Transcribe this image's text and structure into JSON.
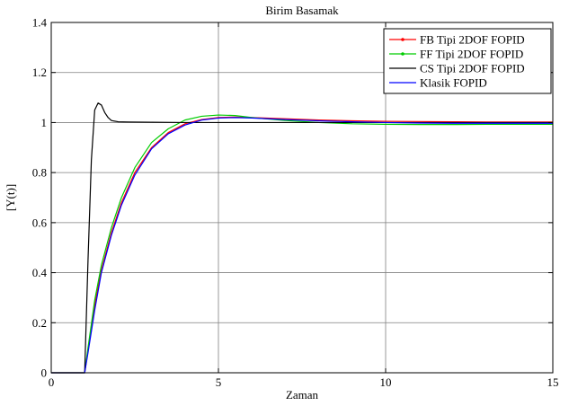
{
  "chart_data": {
    "type": "line",
    "title": "Birim Basamak",
    "xlabel": "Zaman",
    "ylabel": "[Y(t)]",
    "xlim": [
      0,
      15
    ],
    "ylim": [
      0,
      1.4
    ],
    "xticks": [
      0,
      5,
      10,
      15
    ],
    "yticks": [
      0,
      0.2,
      0.4,
      0.6,
      0.8,
      1,
      1.2,
      1.4
    ],
    "xtick_labels": [
      "0",
      "5",
      "10",
      "15"
    ],
    "ytick_labels": [
      "0",
      "0.2",
      "0.4",
      "0.6",
      "0.8",
      "1",
      "1.2",
      "1.4"
    ],
    "grid": true,
    "legend_position": "top-right",
    "series": [
      {
        "name": "FB Tipi 2DOF FOPID",
        "color": "#ff0000",
        "marker": "dot",
        "x": [
          0,
          1.0,
          1.1,
          1.3,
          1.5,
          1.8,
          2.1,
          2.5,
          3.0,
          3.5,
          4.0,
          4.5,
          5.0,
          5.5,
          6.0,
          7.0,
          8.0,
          9.0,
          10.0,
          11.0,
          12.0,
          13.0,
          14.0,
          15.0
        ],
        "y": [
          0,
          0,
          0.09,
          0.27,
          0.41,
          0.56,
          0.68,
          0.8,
          0.9,
          0.96,
          0.995,
          1.012,
          1.02,
          1.022,
          1.02,
          1.015,
          1.01,
          1.007,
          1.005,
          1.004,
          1.003,
          1.002,
          1.002,
          1.002
        ]
      },
      {
        "name": "FF Tipi 2DOF FOPID",
        "color": "#00cc00",
        "marker": "dot",
        "x": [
          0,
          1.0,
          1.1,
          1.3,
          1.5,
          1.8,
          2.1,
          2.5,
          3.0,
          3.5,
          4.0,
          4.5,
          5.0,
          5.5,
          6.0,
          7.0,
          8.0,
          9.0,
          10.0,
          11.0,
          12.0,
          13.0,
          14.0,
          15.0
        ],
        "y": [
          0,
          0,
          0.1,
          0.29,
          0.43,
          0.58,
          0.7,
          0.82,
          0.92,
          0.975,
          1.01,
          1.025,
          1.03,
          1.028,
          1.02,
          1.008,
          1.0,
          0.995,
          0.993,
          0.992,
          0.992,
          0.993,
          0.993,
          0.993
        ]
      },
      {
        "name": "CS Tipi 2DOF FOPID",
        "color": "#000000",
        "x": [
          0,
          1.0,
          1.1,
          1.2,
          1.3,
          1.4,
          1.5,
          1.6,
          1.7,
          1.8,
          2.0,
          2.3,
          3.0,
          4.0,
          5.0,
          7.0,
          10.0,
          15.0
        ],
        "y": [
          0,
          0,
          0.45,
          0.85,
          1.05,
          1.078,
          1.07,
          1.04,
          1.02,
          1.008,
          1.003,
          1.002,
          1.001,
          1.0,
          1.0,
          1.0,
          1.0,
          1.0
        ]
      },
      {
        "name": "Klasik FOPID",
        "color": "#0000ff",
        "x": [
          0,
          1.0,
          1.1,
          1.3,
          1.5,
          1.8,
          2.1,
          2.5,
          3.0,
          3.5,
          4.0,
          4.5,
          5.0,
          5.5,
          6.0,
          7.0,
          8.0,
          9.0,
          10.0,
          11.0,
          12.0,
          13.0,
          14.0,
          15.0
        ],
        "y": [
          0,
          0,
          0.08,
          0.25,
          0.4,
          0.55,
          0.67,
          0.79,
          0.895,
          0.955,
          0.99,
          1.01,
          1.018,
          1.02,
          1.018,
          1.012,
          1.007,
          1.003,
          1.0,
          0.998,
          0.997,
          0.997,
          0.997,
          0.997
        ]
      }
    ]
  }
}
